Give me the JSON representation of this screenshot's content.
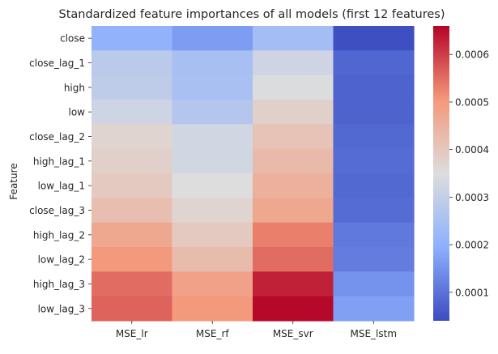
{
  "chart_data": {
    "type": "heatmap",
    "title": "Standardized feature importances of all models (first 12 features)",
    "xlabel": "",
    "ylabel": "Feature",
    "columns": [
      "MSE_lr",
      "MSE_rf",
      "MSE_svr",
      "MSE_lstm"
    ],
    "rows": [
      "close",
      "close_lag_1",
      "high",
      "low",
      "close_lag_2",
      "high_lag_1",
      "low_lag_1",
      "close_lag_3",
      "high_lag_2",
      "low_lag_2",
      "high_lag_3",
      "low_lag_3"
    ],
    "values": [
      [
        0.000205,
        0.000165,
        0.00024,
        4.5e-05
      ],
      [
        0.000285,
        0.000245,
        0.00032,
        8e-05
      ],
      [
        0.00029,
        0.00025,
        0.000345,
        7.5e-05
      ],
      [
        0.00032,
        0.00027,
        0.00038,
        7.5e-05
      ],
      [
        0.00037,
        0.000325,
        0.00041,
        8.5e-05
      ],
      [
        0.00038,
        0.000325,
        0.00043,
        9e-05
      ],
      [
        0.000395,
        0.00035,
        0.00045,
        8.5e-05
      ],
      [
        0.00042,
        0.00037,
        0.00047,
        9e-05
      ],
      [
        0.00047,
        0.000395,
        0.00053,
        0.00011
      ],
      [
        0.0005,
        0.000425,
        0.00055,
        0.000115
      ],
      [
        0.00055,
        0.000485,
        0.00063,
        0.00015
      ],
      [
        0.00056,
        0.0005,
        0.000655,
        0.00017
      ]
    ],
    "colormap": "coolwarm",
    "colormap_stops": [
      "#3b4cc0",
      "#8db0fe",
      "#dddddd",
      "#f4987a",
      "#b40426"
    ],
    "color_range": [
      4e-05,
      0.00066
    ],
    "colorbar_ticks": [
      0.0001,
      0.0002,
      0.0003,
      0.0004,
      0.0005,
      0.0006
    ],
    "colorbar_tick_labels": [
      "0.0001",
      "0.0002",
      "0.0003",
      "0.0004",
      "0.0005",
      "0.0006"
    ],
    "grid": false
  }
}
